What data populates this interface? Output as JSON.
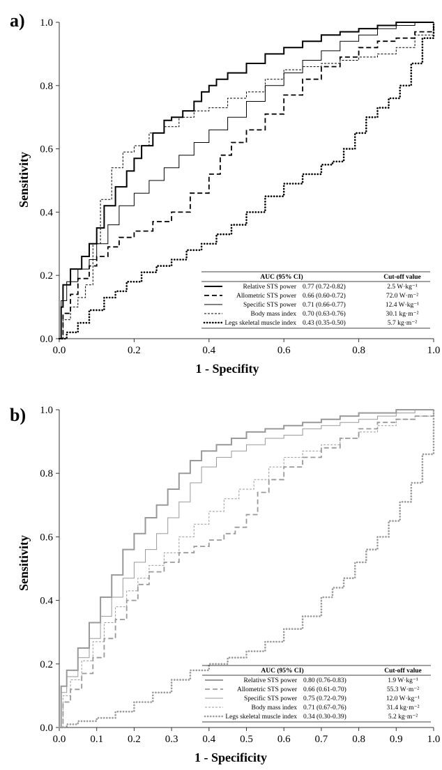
{
  "chart_data": [
    {
      "panel_label": "a)",
      "type": "line",
      "xlabel": "1 - Specifity",
      "ylabel": "Sensitivity",
      "xlim": [
        0,
        1
      ],
      "ylim": [
        0,
        1
      ],
      "x_ticks": [
        "0.0",
        "0.2",
        "0.4",
        "0.6",
        "0.8",
        "1.0"
      ],
      "y_ticks": [
        "0.0",
        "0.2",
        "0.4",
        "0.6",
        "0.8",
        "1.0"
      ],
      "grid": false,
      "color": "#000000",
      "legend": {
        "placement": "bottom-right",
        "header": [
          "AUC (95% CI)",
          "Cut-off value"
        ],
        "rows": [
          {
            "name": "Relative STS power",
            "auc": "0.77 (0.72-0.82)",
            "cutoff": "2.5 W·kg⁻¹",
            "style": "solid-thick"
          },
          {
            "name": "Allometric STS power",
            "auc": "0.66 (0.60-0.72)",
            "cutoff": "72.0 W·m⁻²",
            "style": "dashed-long"
          },
          {
            "name": "Specific STS power",
            "auc": "0.71 (0.66-0.77)",
            "cutoff": "12.4 W·kg⁻¹",
            "style": "solid-thin"
          },
          {
            "name": "Body mass index",
            "auc": "0.70 (0.63-0.76)",
            "cutoff": "30.1 kg·m⁻²",
            "style": "dashed-short"
          },
          {
            "name": "Legs skeletal muscle index",
            "auc": "0.43 (0.35-0.50)",
            "cutoff": "5.7 kg·m⁻²",
            "style": "dotted"
          }
        ]
      },
      "series": [
        {
          "name": "Relative STS power",
          "style": "solid-thick",
          "x": [
            0,
            0.005,
            0.01,
            0.03,
            0.06,
            0.08,
            0.1,
            0.12,
            0.15,
            0.18,
            0.2,
            0.22,
            0.25,
            0.28,
            0.3,
            0.33,
            0.36,
            0.38,
            0.4,
            0.42,
            0.45,
            0.5,
            0.55,
            0.6,
            0.65,
            0.7,
            0.75,
            0.8,
            0.85,
            0.9,
            0.95,
            1.0
          ],
          "y": [
            0,
            0.1,
            0.17,
            0.22,
            0.26,
            0.3,
            0.35,
            0.42,
            0.48,
            0.53,
            0.57,
            0.61,
            0.65,
            0.69,
            0.7,
            0.72,
            0.75,
            0.78,
            0.8,
            0.82,
            0.84,
            0.87,
            0.9,
            0.92,
            0.94,
            0.96,
            0.97,
            0.98,
            0.99,
            1.0,
            1.0,
            1.0
          ]
        },
        {
          "name": "Allometric STS power",
          "style": "dashed-long",
          "x": [
            0,
            0.01,
            0.03,
            0.05,
            0.08,
            0.1,
            0.13,
            0.16,
            0.2,
            0.25,
            0.3,
            0.35,
            0.4,
            0.43,
            0.46,
            0.5,
            0.55,
            0.6,
            0.65,
            0.7,
            0.75,
            0.8,
            0.85,
            0.9,
            0.95,
            1.0
          ],
          "y": [
            0,
            0.08,
            0.14,
            0.19,
            0.23,
            0.26,
            0.29,
            0.32,
            0.34,
            0.37,
            0.4,
            0.46,
            0.52,
            0.58,
            0.62,
            0.66,
            0.71,
            0.77,
            0.82,
            0.86,
            0.89,
            0.92,
            0.94,
            0.95,
            0.97,
            1.0
          ]
        },
        {
          "name": "Specific STS power",
          "style": "solid-thin",
          "x": [
            0,
            0.005,
            0.02,
            0.05,
            0.08,
            0.1,
            0.13,
            0.16,
            0.2,
            0.24,
            0.28,
            0.32,
            0.36,
            0.4,
            0.45,
            0.5,
            0.55,
            0.6,
            0.65,
            0.7,
            0.75,
            0.8,
            0.85,
            0.9,
            0.95,
            1.0
          ],
          "y": [
            0,
            0.12,
            0.18,
            0.22,
            0.25,
            0.3,
            0.36,
            0.42,
            0.46,
            0.5,
            0.54,
            0.58,
            0.62,
            0.66,
            0.7,
            0.75,
            0.8,
            0.84,
            0.88,
            0.91,
            0.94,
            0.96,
            0.98,
            0.99,
            1.0,
            1.0
          ]
        },
        {
          "name": "Body mass index",
          "style": "dashed-short",
          "x": [
            0,
            0.01,
            0.03,
            0.05,
            0.07,
            0.09,
            0.11,
            0.14,
            0.17,
            0.2,
            0.24,
            0.28,
            0.32,
            0.36,
            0.4,
            0.45,
            0.5,
            0.55,
            0.6,
            0.65,
            0.7,
            0.75,
            0.8,
            0.85,
            0.9,
            0.95,
            1.0
          ],
          "y": [
            0,
            0.06,
            0.1,
            0.13,
            0.17,
            0.3,
            0.44,
            0.54,
            0.59,
            0.61,
            0.65,
            0.67,
            0.7,
            0.72,
            0.73,
            0.76,
            0.78,
            0.82,
            0.85,
            0.86,
            0.87,
            0.88,
            0.89,
            0.9,
            0.92,
            0.96,
            1.0
          ]
        },
        {
          "name": "Legs skeletal muscle index",
          "style": "dotted",
          "x": [
            0,
            0.02,
            0.05,
            0.08,
            0.12,
            0.15,
            0.18,
            0.22,
            0.26,
            0.3,
            0.34,
            0.38,
            0.42,
            0.46,
            0.5,
            0.55,
            0.6,
            0.65,
            0.7,
            0.73,
            0.76,
            0.79,
            0.82,
            0.85,
            0.88,
            0.91,
            0.94,
            0.97,
            1.0
          ],
          "y": [
            0,
            0.02,
            0.05,
            0.09,
            0.13,
            0.15,
            0.18,
            0.21,
            0.23,
            0.25,
            0.28,
            0.3,
            0.33,
            0.36,
            0.4,
            0.45,
            0.49,
            0.52,
            0.55,
            0.56,
            0.6,
            0.65,
            0.7,
            0.73,
            0.76,
            0.8,
            0.87,
            0.95,
            1.0
          ]
        }
      ]
    },
    {
      "panel_label": "b)",
      "type": "line",
      "xlabel": "1 - Specificity",
      "ylabel": "Sensitivity",
      "xlim": [
        0,
        1
      ],
      "ylim": [
        0,
        1
      ],
      "x_ticks": [
        "0.0",
        "0.1",
        "0.2",
        "0.3",
        "0.4",
        "0.5",
        "0.6",
        "0.7",
        "0.8",
        "0.9",
        "1.0"
      ],
      "y_ticks": [
        "0.0",
        "0.2",
        "0.4",
        "0.6",
        "0.8",
        "1.0"
      ],
      "grid": false,
      "color": "#999999",
      "legend": {
        "placement": "bottom-right",
        "header": [
          "AUC (95% CI)",
          "Cut-off value"
        ],
        "rows": [
          {
            "name": "Relative STS power",
            "auc": "0.80 (0.76-0.83)",
            "cutoff": "1.9 W·kg⁻¹",
            "style": "solid-thick"
          },
          {
            "name": "Allometric STS power",
            "auc": "0.66 (0.61-0.70)",
            "cutoff": "55.3 W·m⁻²",
            "style": "dashed-long"
          },
          {
            "name": "Specific STS power",
            "auc": "0.75 (0.72-0.79)",
            "cutoff": "12.0 W·kg⁻¹",
            "style": "solid-thin"
          },
          {
            "name": "Body mass index",
            "auc": "0.71 (0.67-0.76)",
            "cutoff": "31.4 kg·m⁻²",
            "style": "dashed-short"
          },
          {
            "name": "Legs skeletal muscle index",
            "auc": "0.34 (0.30-0.39)",
            "cutoff": "5.2 kg·m⁻²",
            "style": "dotted"
          }
        ]
      },
      "series": [
        {
          "name": "Relative STS power",
          "style": "solid-thick",
          "x": [
            0,
            0.005,
            0.02,
            0.05,
            0.08,
            0.11,
            0.14,
            0.17,
            0.2,
            0.23,
            0.26,
            0.29,
            0.32,
            0.35,
            0.38,
            0.42,
            0.46,
            0.5,
            0.55,
            0.6,
            0.65,
            0.7,
            0.75,
            0.8,
            0.85,
            0.9,
            0.95,
            1.0
          ],
          "y": [
            0,
            0.13,
            0.18,
            0.25,
            0.33,
            0.41,
            0.48,
            0.56,
            0.61,
            0.66,
            0.7,
            0.75,
            0.8,
            0.84,
            0.87,
            0.89,
            0.91,
            0.93,
            0.94,
            0.95,
            0.96,
            0.97,
            0.98,
            0.99,
            0.99,
            1.0,
            1.0,
            1.0
          ]
        },
        {
          "name": "Allometric STS power",
          "style": "dashed-long",
          "x": [
            0,
            0.01,
            0.03,
            0.06,
            0.09,
            0.12,
            0.15,
            0.18,
            0.21,
            0.24,
            0.28,
            0.32,
            0.36,
            0.4,
            0.44,
            0.47,
            0.5,
            0.53,
            0.56,
            0.6,
            0.65,
            0.7,
            0.75,
            0.8,
            0.85,
            0.9,
            0.95,
            1.0
          ],
          "y": [
            0,
            0.08,
            0.12,
            0.17,
            0.22,
            0.28,
            0.34,
            0.4,
            0.45,
            0.49,
            0.52,
            0.55,
            0.57,
            0.59,
            0.61,
            0.63,
            0.67,
            0.74,
            0.78,
            0.82,
            0.85,
            0.88,
            0.91,
            0.94,
            0.96,
            0.97,
            0.98,
            1.0
          ]
        },
        {
          "name": "Specific STS power",
          "style": "solid-thin",
          "x": [
            0,
            0.005,
            0.02,
            0.05,
            0.08,
            0.11,
            0.14,
            0.17,
            0.2,
            0.23,
            0.26,
            0.29,
            0.32,
            0.35,
            0.38,
            0.42,
            0.46,
            0.5,
            0.55,
            0.6,
            0.65,
            0.7,
            0.75,
            0.8,
            0.85,
            0.9,
            0.95,
            1.0
          ],
          "y": [
            0,
            0.11,
            0.16,
            0.22,
            0.28,
            0.35,
            0.41,
            0.47,
            0.52,
            0.56,
            0.61,
            0.66,
            0.71,
            0.77,
            0.82,
            0.85,
            0.87,
            0.89,
            0.91,
            0.92,
            0.94,
            0.95,
            0.96,
            0.97,
            0.98,
            0.99,
            1.0,
            1.0
          ]
        },
        {
          "name": "Body mass index",
          "style": "dashed-short",
          "x": [
            0,
            0.01,
            0.03,
            0.06,
            0.09,
            0.12,
            0.15,
            0.18,
            0.21,
            0.24,
            0.28,
            0.32,
            0.36,
            0.4,
            0.44,
            0.48,
            0.52,
            0.56,
            0.6,
            0.65,
            0.7,
            0.75,
            0.8,
            0.85,
            0.9,
            0.95,
            1.0
          ],
          "y": [
            0,
            0.1,
            0.15,
            0.21,
            0.27,
            0.33,
            0.38,
            0.43,
            0.47,
            0.51,
            0.55,
            0.6,
            0.64,
            0.68,
            0.72,
            0.75,
            0.78,
            0.82,
            0.85,
            0.87,
            0.89,
            0.91,
            0.93,
            0.95,
            0.97,
            0.98,
            1.0
          ]
        },
        {
          "name": "Legs skeletal muscle index",
          "style": "dotted",
          "x": [
            0,
            0.02,
            0.05,
            0.1,
            0.15,
            0.2,
            0.25,
            0.3,
            0.35,
            0.4,
            0.45,
            0.5,
            0.55,
            0.6,
            0.65,
            0.7,
            0.73,
            0.76,
            0.79,
            0.82,
            0.85,
            0.88,
            0.91,
            0.94,
            0.97,
            1.0
          ],
          "y": [
            0,
            0.01,
            0.02,
            0.03,
            0.05,
            0.08,
            0.11,
            0.15,
            0.18,
            0.2,
            0.22,
            0.24,
            0.27,
            0.31,
            0.35,
            0.41,
            0.44,
            0.47,
            0.52,
            0.56,
            0.6,
            0.65,
            0.71,
            0.77,
            0.86,
            1.0
          ]
        }
      ]
    }
  ]
}
